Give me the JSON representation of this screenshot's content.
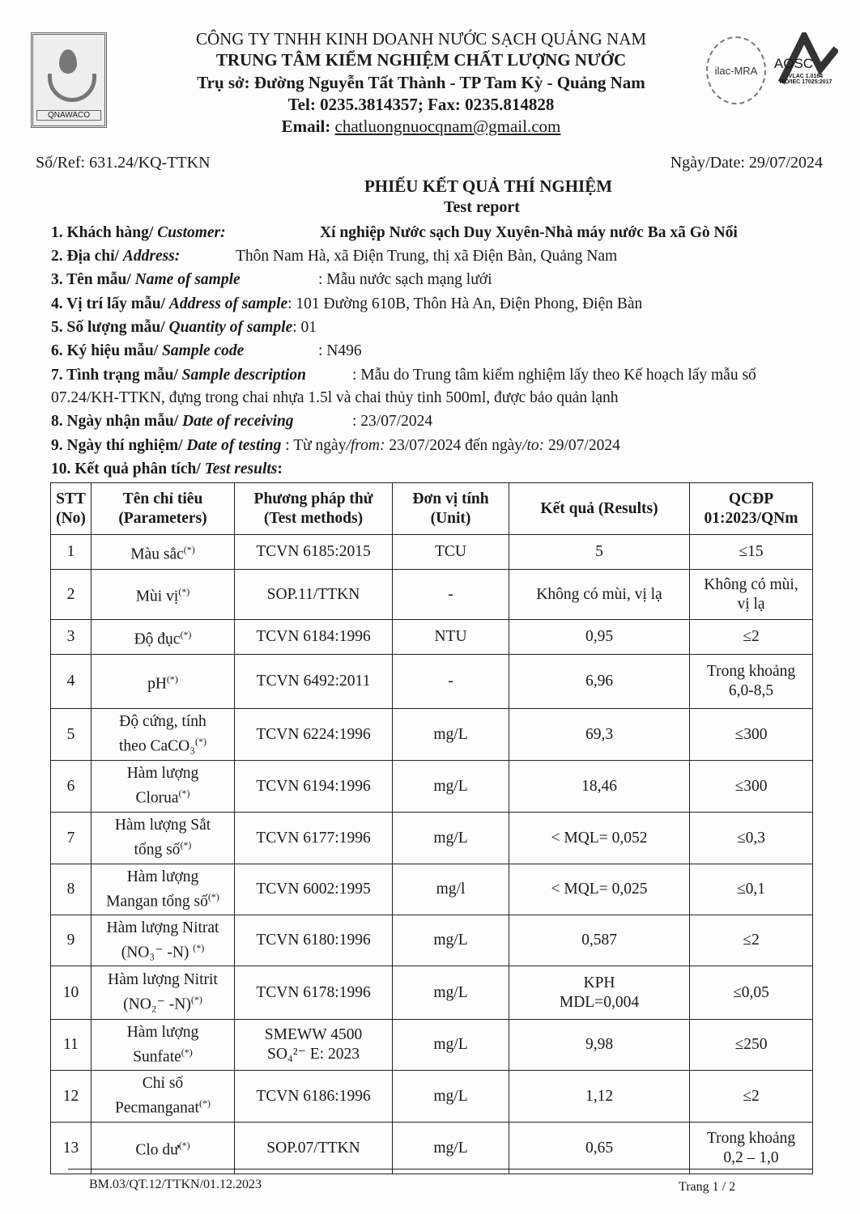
{
  "header": {
    "company": "CÔNG TY TNHH KINH DOANH NƯỚC SẠCH QUẢNG NAM",
    "center": "TRUNG TÂM KIỂM NGHIỆM CHẤT LƯỢNG NƯỚC",
    "address": "Trụ sở: Đường Nguyễn Tất Thành - TP Tam Kỳ -  Quảng Nam",
    "tel": "Tel: 0235.3814357; Fax: 0235.814828",
    "email_label": "Email:",
    "email": "chatluongnuocqnam@gmail.com",
    "logo_text": "QNAWACO",
    "ilac_text": "ilac-MRA",
    "aosc_text": "AOSC",
    "aosc_sub1": "VLAC 1.0164",
    "aosc_sub2": "ISO/IEC 17025:2017"
  },
  "ref": "Số/Ref: 631.24/KQ-TTKN",
  "date": "Ngày/Date: 29/07/2024",
  "title": "PHIẾU KẾT QUẢ THÍ NGHIỆM",
  "subtitle": "Test report",
  "fields": [
    {
      "label": "1. Khách hàng/ ",
      "label_en": "Customer:",
      "value": "Xí nghiệp Nước sạch Duy Xuyên-Nhà máy nước Ba xã Gò Nổi"
    },
    {
      "label": "2. Địa chỉ/ ",
      "label_en": "Address:",
      "value": "Thôn Nam Hà, xã Điện Trung, thị xã Điện Bàn, Quảng Nam"
    },
    {
      "label": "3. Tên mẫu/ ",
      "label_en": "Name of sample",
      "value": ": Mẫu nước sạch mạng lưới"
    },
    {
      "label": "4. Vị trí lấy mẫu/ ",
      "label_en": "Address of sample",
      "value": ": 101 Đường 610B, Thôn Hà An, Điện Phong, Điện Bàn"
    },
    {
      "label": "5. Số lượng mẫu/ ",
      "label_en": "Quantity of sample",
      "value": ": 01"
    },
    {
      "label": "6. Ký hiệu mẫu/ ",
      "label_en": "Sample code",
      "value": ": N496"
    },
    {
      "label": "7. Tình trạng mẫu/ ",
      "label_en": "Sample description",
      "value": ": Mẫu do Trung tâm kiểm nghiệm lấy theo Kế hoạch lấy mẫu số",
      "value2": "07.24/KH-TTKN, đựng trong chai nhựa 1.5l và chai thủy tinh 500ml, được bảo quản lạnh"
    },
    {
      "label": "8. Ngày nhận mẫu/ ",
      "label_en": "Date of receiving",
      "value": ": 23/07/2024"
    },
    {
      "label": "9. Ngày thí nghiệm/ ",
      "label_en": "Date of testing",
      "value": ": Từ ngày",
      "from": "/from:",
      "from_val": " 23/07/2024  đến ngày",
      "to": "/to:",
      "to_val": " 29/07/2024"
    },
    {
      "label": "10. Kết quả phân tích/ ",
      "label_en": "Test results",
      "value": ":"
    }
  ],
  "table": {
    "headers": [
      [
        "STT",
        "(No)"
      ],
      [
        "Tên chỉ tiêu",
        "(Parameters)"
      ],
      [
        "Phương pháp thử",
        "(Test methods)"
      ],
      [
        "Đơn vị tính",
        "(Unit)"
      ],
      [
        "Kết quả (Results)"
      ],
      [
        "QCĐP",
        "01:2023/QNm"
      ]
    ],
    "rows": [
      {
        "no": "1",
        "param": [
          "Màu sắc"
        ],
        "sup": "(*)",
        "method": [
          "TCVN 6185:2015"
        ],
        "unit": "TCU",
        "result": [
          "5"
        ],
        "limit": [
          "≤15"
        ]
      },
      {
        "no": "2",
        "param": [
          "Mùi vị"
        ],
        "sup": "(*)",
        "method": [
          "SOP.11/TTKN"
        ],
        "unit": "-",
        "result": [
          "Không có mùi, vị lạ"
        ],
        "limit": [
          "Không có mùi,",
          "vị lạ"
        ]
      },
      {
        "no": "3",
        "param": [
          "Độ đục"
        ],
        "sup": "(*)",
        "method": [
          "TCVN 6184:1996"
        ],
        "unit": "NTU",
        "result": [
          "0,95"
        ],
        "limit": [
          "≤2"
        ]
      },
      {
        "no": "4",
        "param": [
          "pH"
        ],
        "sup": "(*)",
        "method": [
          "TCVN 6492:2011"
        ],
        "unit": "-",
        "result": [
          "6,96"
        ],
        "limit": [
          "Trong khoảng",
          "6,0-8,5"
        ]
      },
      {
        "no": "5",
        "param": [
          "Độ cứng, tính",
          "theo CaCO₃"
        ],
        "sup": "(*)",
        "method": [
          "TCVN 6224:1996"
        ],
        "unit": "mg/L",
        "result": [
          "69,3"
        ],
        "limit": [
          "≤300"
        ]
      },
      {
        "no": "6",
        "param": [
          "Hàm lượng",
          "Clorua"
        ],
        "sup": "(*)",
        "method": [
          "TCVN 6194:1996"
        ],
        "unit": "mg/L",
        "result": [
          "18,46"
        ],
        "limit": [
          "≤300"
        ]
      },
      {
        "no": "7",
        "param": [
          "Hàm lượng Sắt",
          "tổng số"
        ],
        "sup": "(*)",
        "method": [
          "TCVN 6177:1996"
        ],
        "unit": "mg/L",
        "result": [
          "< MQL= 0,052"
        ],
        "limit": [
          "≤0,3"
        ]
      },
      {
        "no": "8",
        "param": [
          "Hàm lượng",
          "Mangan tổng số"
        ],
        "sup": "(*)",
        "method": [
          "TCVN 6002:1995"
        ],
        "unit": "mg/l",
        "result": [
          "< MQL= 0,025"
        ],
        "limit": [
          "≤0,1"
        ]
      },
      {
        "no": "9",
        "param": [
          "Hàm lượng Nitrat",
          "(NO₃⁻ -N) "
        ],
        "sup": "(*)",
        "method": [
          "TCVN 6180:1996"
        ],
        "unit": "mg/L",
        "result": [
          "0,587"
        ],
        "limit": [
          "≤2"
        ]
      },
      {
        "no": "10",
        "param": [
          "Hàm lượng Nitrit",
          "(NO₂⁻ -N)"
        ],
        "sup": "(*)",
        "method": [
          "TCVN 6178:1996"
        ],
        "unit": "mg/L",
        "result": [
          "KPH",
          "MDL=0,004"
        ],
        "limit": [
          "≤0,05"
        ]
      },
      {
        "no": "11",
        "param": [
          "Hàm lượng",
          "Sunfate"
        ],
        "sup": "(*)",
        "method": [
          "SMEWW 4500",
          "SO₄²⁻ E: 2023"
        ],
        "unit": "mg/L",
        "result": [
          "9,98"
        ],
        "limit": [
          "≤250"
        ]
      },
      {
        "no": "12",
        "param": [
          "Chỉ số",
          "Pecmanganat"
        ],
        "sup": "(*)",
        "method": [
          "TCVN 6186:1996"
        ],
        "unit": "mg/L",
        "result": [
          "1,12"
        ],
        "limit": [
          "≤2"
        ]
      },
      {
        "no": "13",
        "param": [
          "Clo dư"
        ],
        "sup": "(*)",
        "method": [
          "SOP.07/TTKN"
        ],
        "unit": "mg/L",
        "result": [
          "0,65"
        ],
        "limit": [
          "Trong khoảng",
          "0,2 – 1,0"
        ]
      }
    ]
  },
  "footer": {
    "form_code": "BM.03/QT.12/TTKN/01.12.2023",
    "page": "Trang 1 / 2"
  }
}
